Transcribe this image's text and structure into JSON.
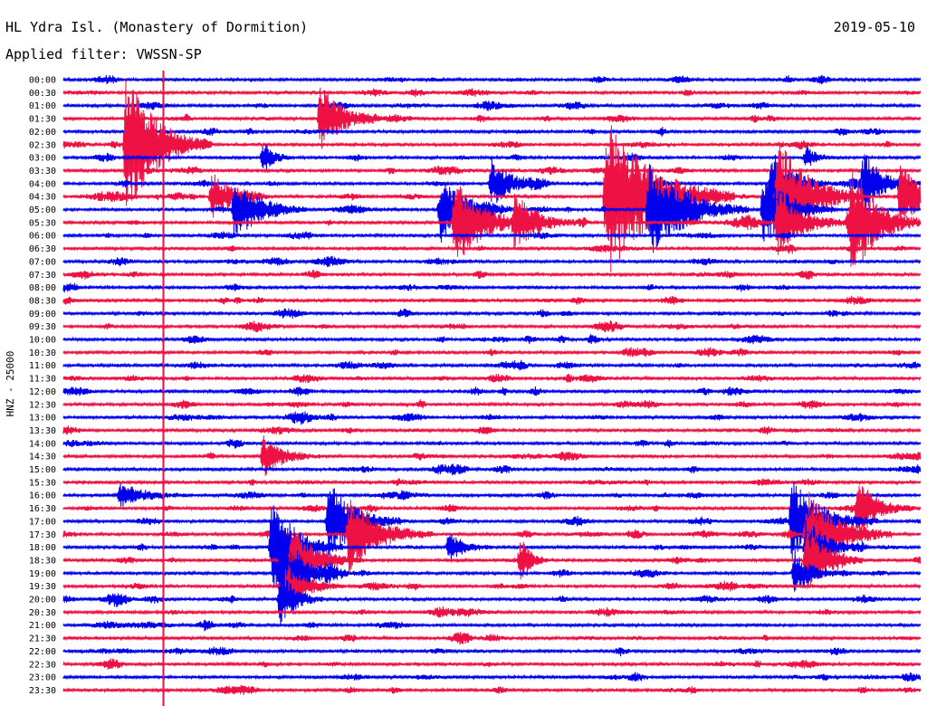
{
  "header": {
    "title": "HL Ydra Isl. (Monastery of Dormition)",
    "filter": "Applied filter: VWSSN-SP",
    "date": "2019-05-10"
  },
  "chart_data": {
    "type": "line",
    "title": "HL Ydra Isl. (Monastery of Dormition)",
    "subtitle": "Applied filter: VWSSN-SP",
    "date": "2019-05-10",
    "ylabel": "HNZ - 25000",
    "xlabel": "",
    "row_labels": [
      "00:00",
      "00:30",
      "01:00",
      "01:30",
      "02:00",
      "02:30",
      "03:00",
      "03:30",
      "04:00",
      "04:30",
      "05:00",
      "05:30",
      "06:00",
      "06:30",
      "07:00",
      "07:30",
      "08:00",
      "08:30",
      "09:00",
      "09:30",
      "10:00",
      "10:30",
      "11:00",
      "11:30",
      "12:00",
      "12:30",
      "13:00",
      "13:30",
      "14:00",
      "14:30",
      "15:00",
      "15:30",
      "16:00",
      "16:30",
      "17:00",
      "17:30",
      "18:00",
      "18:30",
      "19:00",
      "19:30",
      "20:00",
      "20:30",
      "21:00",
      "21:30",
      "22:00",
      "22:30",
      "23:00",
      "23:30"
    ],
    "row_interval_minutes": 30,
    "trace_colors": [
      "#0000ee",
      "#ee1144"
    ],
    "marker_color": "#ee1144",
    "marker_minute": 3.5,
    "grid": false,
    "events": [
      {
        "row": 5,
        "minute": 2.2,
        "amplitude": 9.0,
        "duration": 3.0
      },
      {
        "row": 3,
        "minute": 9.0,
        "amplitude": 4.5,
        "duration": 2.0
      },
      {
        "row": 9,
        "minute": 19.0,
        "amplitude": 10.5,
        "duration": 4.5
      },
      {
        "row": 10,
        "minute": 6.0,
        "amplitude": 4.0,
        "duration": 2.5
      },
      {
        "row": 8,
        "minute": 15.0,
        "amplitude": 3.0,
        "duration": 2.0
      },
      {
        "row": 11,
        "minute": 15.8,
        "amplitude": 3.0,
        "duration": 2.5
      },
      {
        "row": 10,
        "minute": 20.5,
        "amplitude": 6.0,
        "duration": 3.5
      },
      {
        "row": 11,
        "minute": 25.0,
        "amplitude": 4.0,
        "duration": 2.5
      },
      {
        "row": 9,
        "minute": 25.0,
        "amplitude": 7.5,
        "duration": 3.0
      },
      {
        "row": 10,
        "minute": 24.5,
        "amplitude": 4.5,
        "duration": 2.5
      },
      {
        "row": 11,
        "minute": 27.5,
        "amplitude": 3.0,
        "duration": 2.5
      },
      {
        "row": 8,
        "minute": 24.8,
        "amplitude": 4.5,
        "duration": 2.0
      },
      {
        "row": 9,
        "minute": 5.2,
        "amplitude": 3.0,
        "duration": 2.0
      },
      {
        "row": 10,
        "minute": 13.2,
        "amplitude": 4.0,
        "duration": 2.5
      },
      {
        "row": 11,
        "minute": 13.7,
        "amplitude": 5.0,
        "duration": 3.0
      },
      {
        "row": 8,
        "minute": 28.0,
        "amplitude": 3.5,
        "duration": 2.0
      },
      {
        "row": 9,
        "minute": 29.3,
        "amplitude": 4.0,
        "duration": 2.5
      },
      {
        "row": 11,
        "minute": 27.6,
        "amplitude": 4.5,
        "duration": 2.5
      },
      {
        "row": 6,
        "minute": 7.0,
        "amplitude": 2.0,
        "duration": 1.0
      },
      {
        "row": 6,
        "minute": 26.0,
        "amplitude": 1.5,
        "duration": 1.0
      },
      {
        "row": 29,
        "minute": 7.0,
        "amplitude": 2.5,
        "duration": 2.0
      },
      {
        "row": 34,
        "minute": 9.3,
        "amplitude": 5.0,
        "duration": 2.5
      },
      {
        "row": 35,
        "minute": 10.0,
        "amplitude": 4.5,
        "duration": 3.0
      },
      {
        "row": 36,
        "minute": 7.3,
        "amplitude": 6.0,
        "duration": 2.5
      },
      {
        "row": 37,
        "minute": 8.0,
        "amplitude": 4.0,
        "duration": 2.5
      },
      {
        "row": 38,
        "minute": 7.6,
        "amplitude": 5.0,
        "duration": 2.0
      },
      {
        "row": 39,
        "minute": 7.8,
        "amplitude": 3.0,
        "duration": 2.0
      },
      {
        "row": 40,
        "minute": 7.6,
        "amplitude": 3.5,
        "duration": 1.5
      },
      {
        "row": 32,
        "minute": 2.0,
        "amplitude": 1.5,
        "duration": 2.5
      },
      {
        "row": 33,
        "minute": 27.8,
        "amplitude": 3.5,
        "duration": 2.0
      },
      {
        "row": 34,
        "minute": 25.5,
        "amplitude": 5.0,
        "duration": 3.0
      },
      {
        "row": 35,
        "minute": 26.0,
        "amplitude": 6.0,
        "duration": 3.0
      },
      {
        "row": 36,
        "minute": 26.0,
        "amplitude": 4.0,
        "duration": 2.0
      },
      {
        "row": 37,
        "minute": 26.0,
        "amplitude": 4.0,
        "duration": 2.0
      },
      {
        "row": 38,
        "minute": 25.6,
        "amplitude": 3.0,
        "duration": 1.5
      },
      {
        "row": 36,
        "minute": 13.5,
        "amplitude": 2.0,
        "duration": 1.5
      },
      {
        "row": 37,
        "minute": 16.0,
        "amplitude": 2.5,
        "duration": 1.0
      }
    ]
  }
}
